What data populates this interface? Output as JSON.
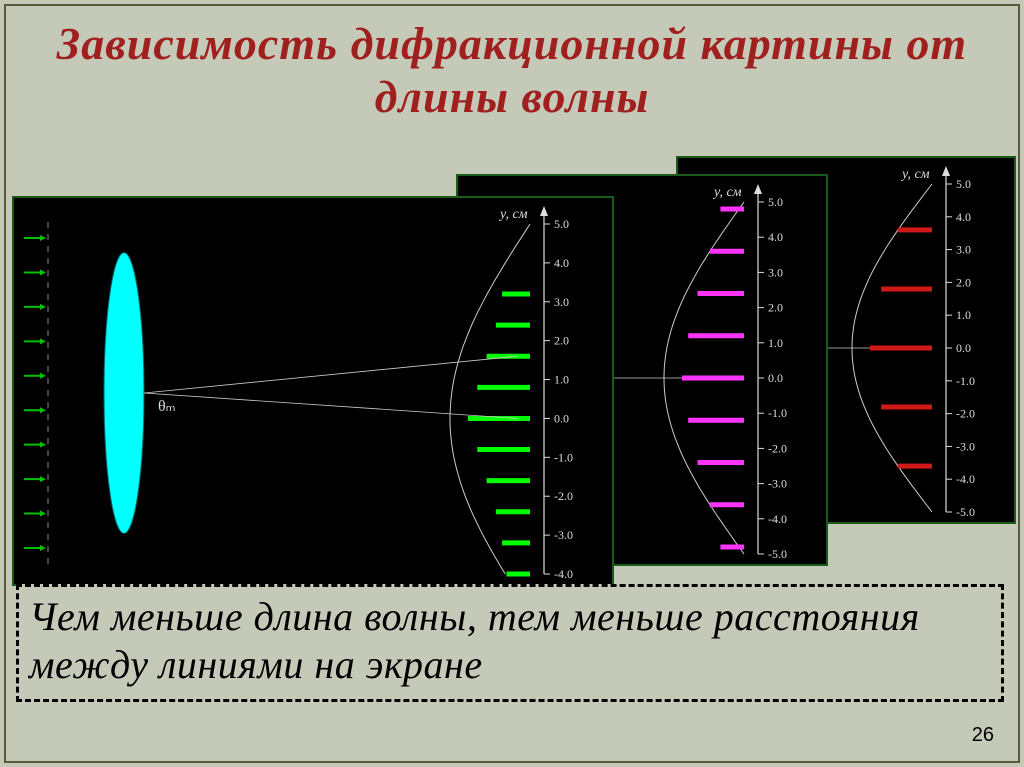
{
  "title": "Зависимость дифракционной картины от длины волны",
  "caption": "Чем меньше длина волны, тем меньше расстояния между линиями на экране",
  "page_number": "26",
  "common": {
    "axis_label": "y, см",
    "axis_color": "#dcdcdc",
    "tick_labels": [
      "5.0",
      "4.0",
      "3.0",
      "2.0",
      "1.0",
      "0.0",
      "-1.0",
      "-2.0",
      "-3.0",
      "-4.0",
      "-5.0"
    ],
    "tick_fontsize": 12,
    "label_fontsize": 14,
    "curve_color": "#cccccc",
    "angle_label": "θₘ",
    "angle_label_fontsize": 16,
    "angle_label_color": "#dddddd",
    "font_family": "Georgia, serif"
  },
  "panels": {
    "p1": {
      "fringe_color": "#00ff00",
      "lens_color": "#00ffff",
      "arrow_color": "#00c000",
      "ylim": [
        -4.0,
        5.0
      ],
      "fringe_positions_cm": [
        3.2,
        2.4,
        1.6,
        0.8,
        0.0,
        -0.8,
        -1.6,
        -2.4,
        -3.2,
        -4.0
      ],
      "fringe_width_rel": [
        0.45,
        0.55,
        0.7,
        0.85,
        1.0,
        0.85,
        0.7,
        0.55,
        0.45,
        0.38
      ],
      "show_source": true
    },
    "p2": {
      "fringe_color": "#ff33ff",
      "ylim": [
        -5.0,
        5.0
      ],
      "fringe_positions_cm": [
        4.8,
        3.6,
        2.4,
        1.2,
        0.0,
        -1.2,
        -2.4,
        -3.6,
        -4.8
      ],
      "fringe_width_rel": [
        0.38,
        0.55,
        0.75,
        0.9,
        1.0,
        0.9,
        0.75,
        0.55,
        0.38
      ]
    },
    "p3": {
      "fringe_color": "#d01818",
      "ylim": [
        -5.0,
        5.0
      ],
      "fringe_positions_cm": [
        3.6,
        1.8,
        0.0,
        -1.8,
        -3.6
      ],
      "fringe_width_rel": [
        0.55,
        0.82,
        1.0,
        0.82,
        0.55
      ]
    }
  }
}
